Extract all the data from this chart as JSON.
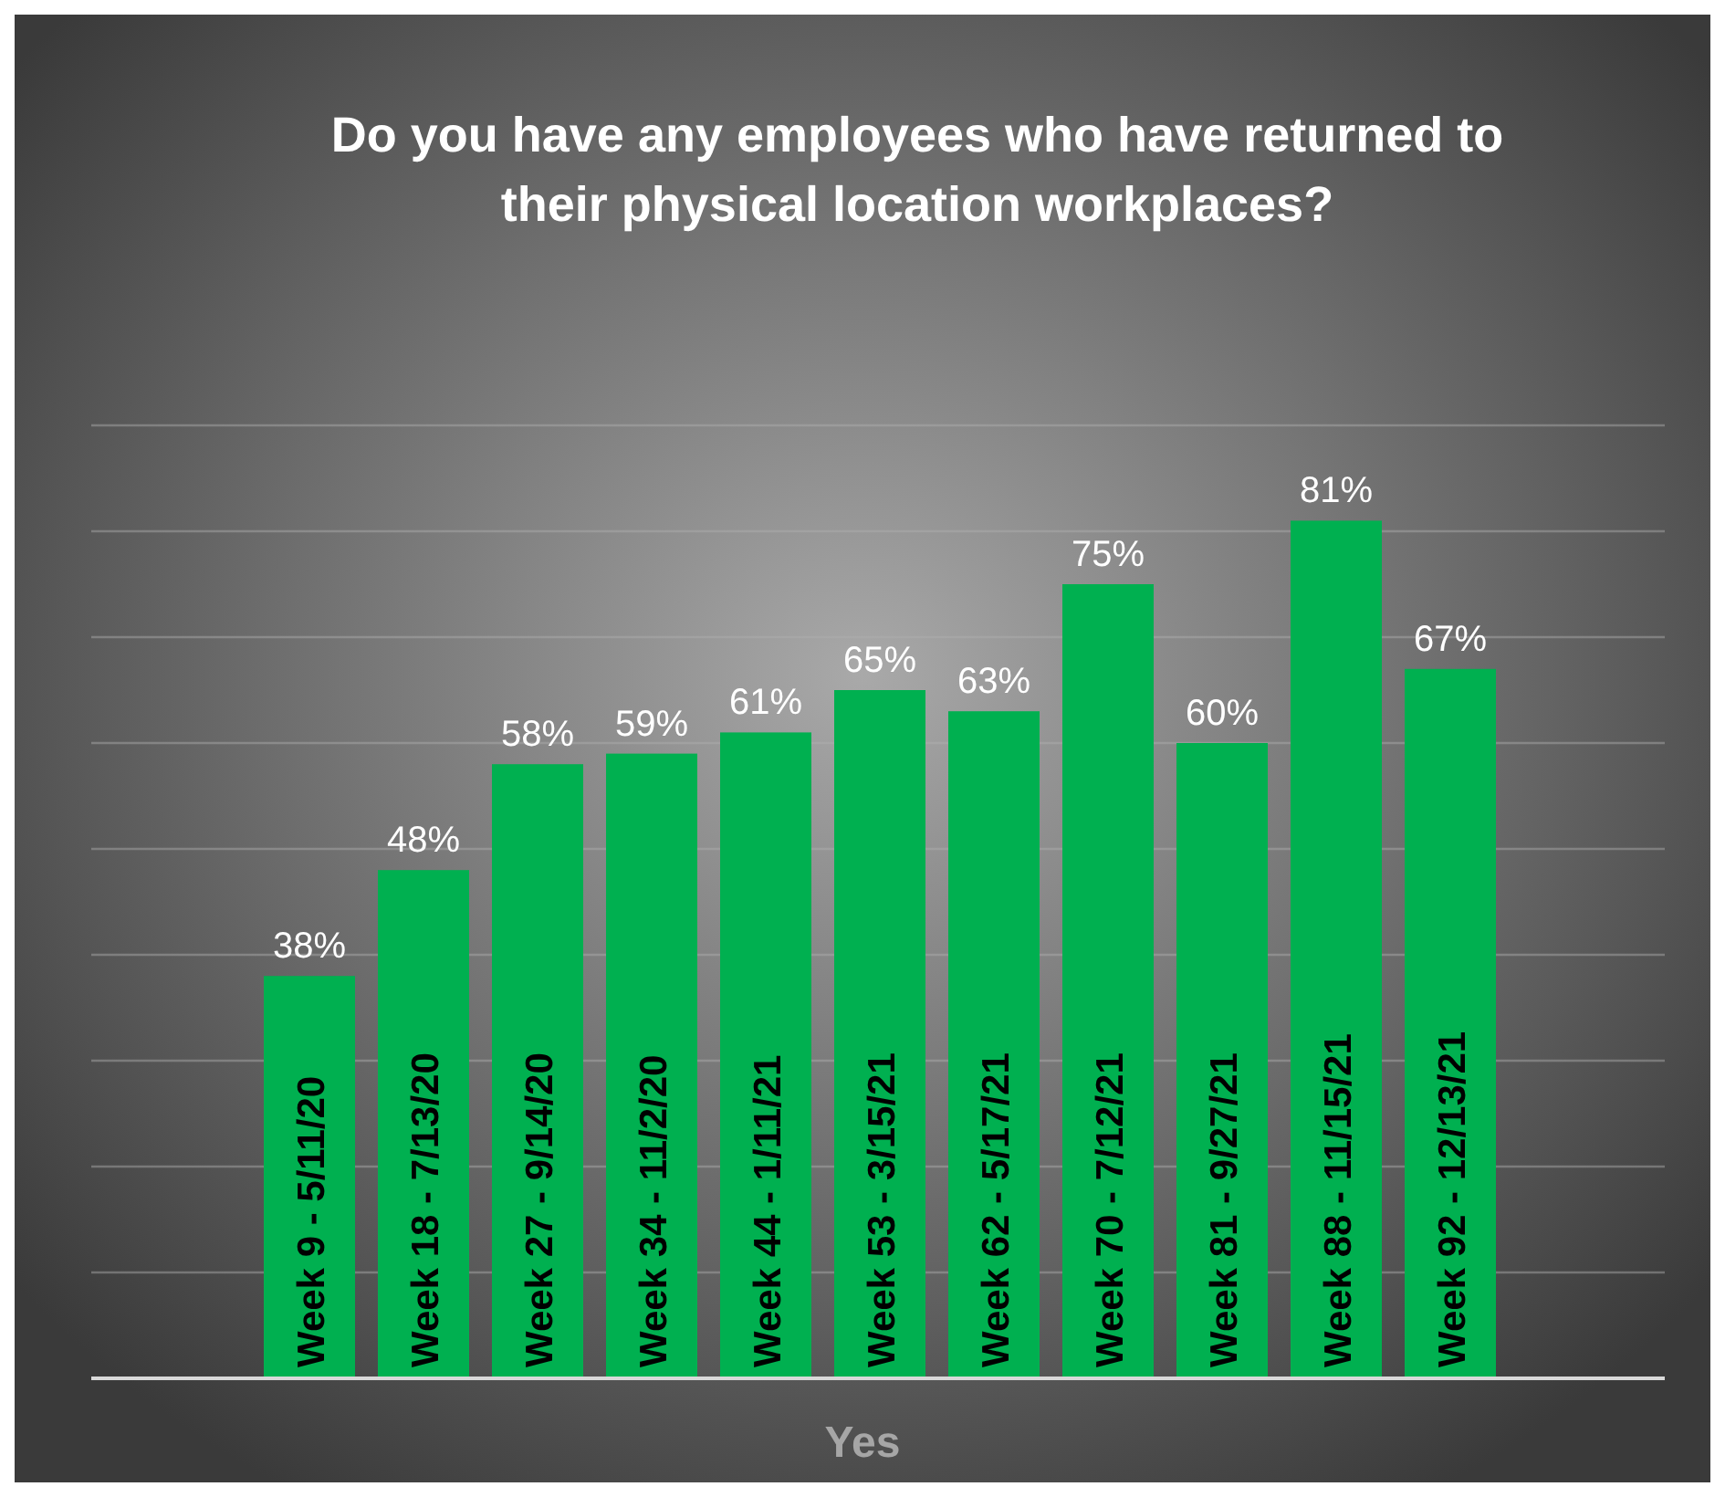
{
  "chart_data": {
    "type": "bar",
    "title": "Do you have any employees who have returned to their physical location workplaces?",
    "xlabel": "Yes",
    "categories": [
      "Week 9 - 5/11/20",
      "Week 18 - 7/13/20",
      "Week 27 - 9/14/20",
      "Week 34 - 11/2/20",
      "Week 44 - 1/11/21",
      "Week 53 - 3/15/21",
      "Week 62 - 5/17/21",
      "Week 70 - 7/12/21",
      "Week 81 - 9/27/21",
      "Week 88 - 11/15/21",
      "Week 92 - 12/13/21"
    ],
    "values": [
      38,
      48,
      58,
      59,
      61,
      65,
      63,
      75,
      60,
      81,
      67
    ],
    "value_labels": [
      "38%",
      "48%",
      "58%",
      "59%",
      "61%",
      "65%",
      "63%",
      "75%",
      "60%",
      "81%",
      "67%"
    ],
    "color": "#00b050",
    "ylim": [
      0,
      90
    ],
    "yticks": [
      {
        "value": 0,
        "label": null
      },
      {
        "value": 10,
        "label": null
      },
      {
        "value": 20,
        "label": null
      },
      {
        "value": 30,
        "label": null
      },
      {
        "value": 40,
        "label": null
      },
      {
        "value": 50,
        "label": null
      },
      {
        "value": 60,
        "label": null
      },
      {
        "value": 70,
        "label": null
      },
      {
        "value": 80,
        "label": null
      },
      {
        "value": 90,
        "label": null
      }
    ],
    "grid": "y",
    "tick_labels": "x"
  }
}
